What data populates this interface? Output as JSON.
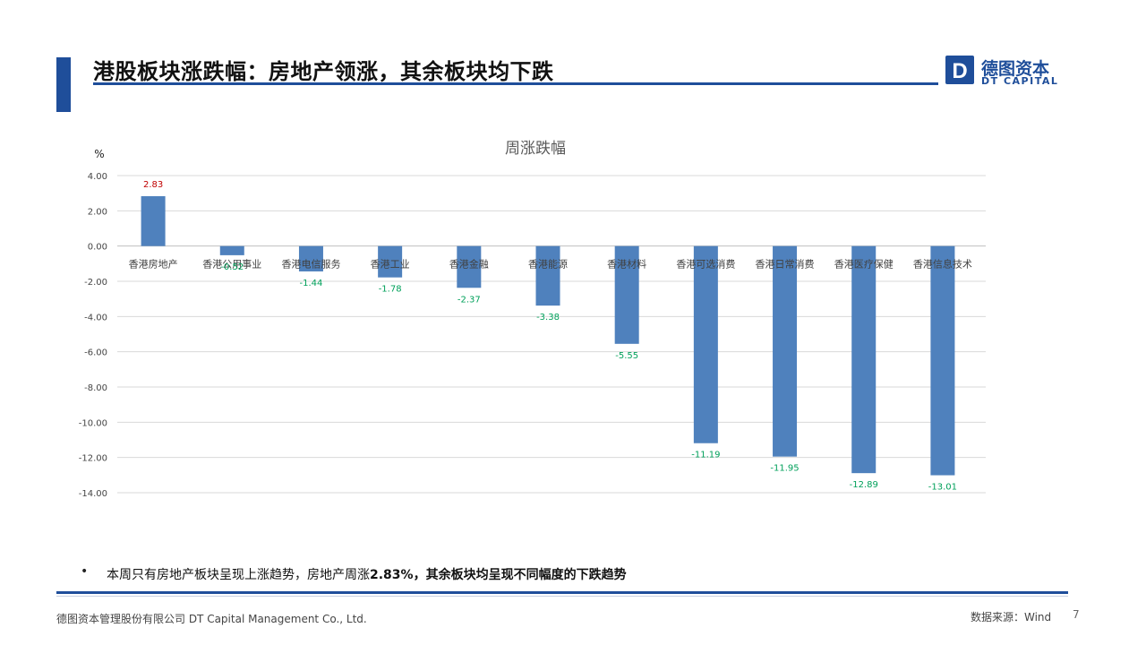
{
  "slide": {
    "title": "港股板块涨跌幅：房地产领涨，其余板块均下跌",
    "bullet_prefix": "本周只有房地产板块呈现上涨趋势，房地产周涨",
    "bullet_bold": "2.83%，其余板块均呈现不同幅度的下跌趋势",
    "page_number": "7"
  },
  "logo": {
    "letter": "D",
    "name_cn": "德图资本",
    "name_en": "DT CAPITAL"
  },
  "footer": {
    "company": "德图资本管理股份有限公司  DT Capital  Management  Co., Ltd.",
    "source": "数据来源：Wind"
  },
  "colors": {
    "brand": "#1f4e9a",
    "bar": "#4f81bd",
    "positive_label": "#c00000",
    "negative_label": "#00a05a",
    "grid": "#d9d9d9"
  },
  "chart_data": {
    "type": "bar",
    "title": "周涨跌幅",
    "ylabel": "%",
    "xlabel": "",
    "ylim": [
      -14,
      4
    ],
    "ytick_step": 2,
    "grid": true,
    "legend": "none",
    "categories": [
      "香港房地产",
      "香港公用事业",
      "香港电信服务",
      "香港工业",
      "香港金融",
      "香港能源",
      "香港材料",
      "香港可选消费",
      "香港日常消费",
      "香港医疗保健",
      "香港信息技术"
    ],
    "values": [
      2.83,
      -0.52,
      -1.44,
      -1.78,
      -2.37,
      -3.38,
      -5.55,
      -11.19,
      -11.95,
      -12.89,
      -13.01
    ]
  }
}
